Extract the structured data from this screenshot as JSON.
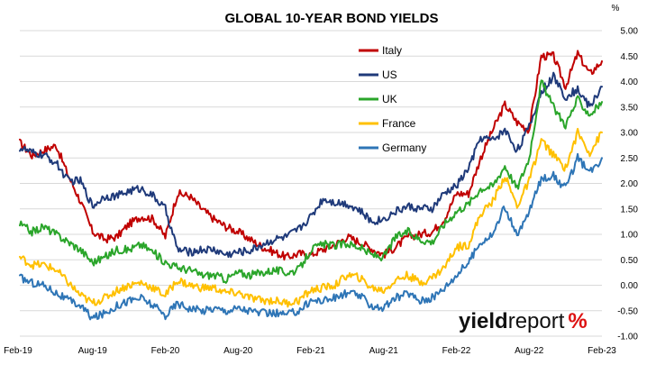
{
  "chart_data": {
    "type": "line",
    "title": "GLOBAL 10-YEAR BOND YIELDS",
    "unit_label": "%",
    "xlabel": "",
    "ylabel": "",
    "ylim": [
      -1.0,
      5.0
    ],
    "y_ticks": [
      "5.00",
      "4.50",
      "4.00",
      "3.50",
      "3.00",
      "2.50",
      "2.00",
      "1.50",
      "1.00",
      "0.50",
      "0.00",
      "-0.50",
      "-1.00"
    ],
    "x_ticks": [
      "Feb-19",
      "Aug-19",
      "Feb-20",
      "Aug-20",
      "Feb-21",
      "Aug-21",
      "Feb-22",
      "Aug-22",
      "Feb-23"
    ],
    "grid": "horizontal",
    "legend_position": "top-center",
    "x": [
      "2019-02",
      "2019-03",
      "2019-04",
      "2019-05",
      "2019-06",
      "2019-07",
      "2019-08",
      "2019-09",
      "2019-10",
      "2019-11",
      "2019-12",
      "2020-01",
      "2020-02",
      "2020-03",
      "2020-04",
      "2020-05",
      "2020-06",
      "2020-07",
      "2020-08",
      "2020-09",
      "2020-10",
      "2020-11",
      "2020-12",
      "2021-01",
      "2021-02",
      "2021-03",
      "2021-04",
      "2021-05",
      "2021-06",
      "2021-07",
      "2021-08",
      "2021-09",
      "2021-10",
      "2021-11",
      "2021-12",
      "2022-01",
      "2022-02",
      "2022-03",
      "2022-04",
      "2022-05",
      "2022-06",
      "2022-07",
      "2022-08",
      "2022-09",
      "2022-10",
      "2022-11",
      "2022-12",
      "2023-01",
      "2023-02"
    ],
    "series": [
      {
        "name": "Italy",
        "color": "#c00000",
        "values": [
          2.8,
          2.55,
          2.65,
          2.75,
          2.15,
          1.65,
          1.05,
          0.9,
          0.95,
          1.2,
          1.35,
          1.3,
          0.95,
          1.8,
          1.75,
          1.5,
          1.3,
          1.15,
          1.05,
          0.9,
          0.75,
          0.65,
          0.55,
          0.62,
          0.6,
          0.7,
          0.8,
          0.95,
          0.85,
          0.72,
          0.6,
          0.75,
          0.95,
          1.0,
          1.05,
          1.3,
          1.8,
          1.8,
          2.5,
          3.05,
          3.55,
          3.2,
          3.05,
          4.5,
          4.5,
          3.9,
          4.55,
          4.15,
          4.4
        ]
      },
      {
        "name": "US",
        "color": "#1f3a7a",
        "values": [
          2.7,
          2.6,
          2.55,
          2.4,
          2.05,
          2.05,
          1.55,
          1.75,
          1.75,
          1.85,
          1.9,
          1.75,
          1.5,
          0.7,
          0.65,
          0.7,
          0.7,
          0.6,
          0.65,
          0.68,
          0.8,
          0.9,
          0.95,
          1.1,
          1.35,
          1.7,
          1.63,
          1.6,
          1.47,
          1.25,
          1.3,
          1.45,
          1.55,
          1.5,
          1.5,
          1.8,
          1.95,
          2.3,
          2.9,
          2.85,
          3.05,
          2.65,
          3.1,
          3.8,
          4.1,
          3.7,
          3.85,
          3.5,
          3.9
        ]
      },
      {
        "name": "UK",
        "color": "#2aa52a",
        "values": [
          1.2,
          1.05,
          1.15,
          1.0,
          0.85,
          0.7,
          0.45,
          0.55,
          0.7,
          0.7,
          0.8,
          0.65,
          0.45,
          0.35,
          0.3,
          0.2,
          0.2,
          0.12,
          0.25,
          0.2,
          0.25,
          0.3,
          0.25,
          0.3,
          0.7,
          0.8,
          0.78,
          0.82,
          0.75,
          0.6,
          0.55,
          0.95,
          1.05,
          0.9,
          0.85,
          1.2,
          1.45,
          1.6,
          1.9,
          1.95,
          2.35,
          1.9,
          2.5,
          4.0,
          3.5,
          3.15,
          3.65,
          3.35,
          3.6
        ]
      },
      {
        "name": "France",
        "color": "#ffc000",
        "values": [
          0.55,
          0.4,
          0.4,
          0.3,
          0.05,
          -0.2,
          -0.35,
          -0.25,
          -0.1,
          0.0,
          0.05,
          -0.05,
          -0.2,
          0.1,
          0.0,
          -0.05,
          -0.05,
          -0.15,
          -0.15,
          -0.25,
          -0.3,
          -0.3,
          -0.35,
          -0.3,
          -0.1,
          -0.05,
          0.0,
          0.2,
          0.15,
          -0.05,
          -0.1,
          0.1,
          0.2,
          0.05,
          0.15,
          0.35,
          0.75,
          0.8,
          1.4,
          1.65,
          2.15,
          1.55,
          2.05,
          2.85,
          2.55,
          2.3,
          3.0,
          2.6,
          3.0
        ]
      },
      {
        "name": "Germany",
        "color": "#2e75b6",
        "values": [
          0.15,
          0.05,
          0.0,
          -0.15,
          -0.3,
          -0.4,
          -0.65,
          -0.55,
          -0.4,
          -0.3,
          -0.25,
          -0.4,
          -0.6,
          -0.35,
          -0.45,
          -0.5,
          -0.45,
          -0.5,
          -0.45,
          -0.5,
          -0.55,
          -0.55,
          -0.58,
          -0.5,
          -0.3,
          -0.3,
          -0.25,
          -0.15,
          -0.2,
          -0.4,
          -0.45,
          -0.25,
          -0.15,
          -0.3,
          -0.25,
          -0.05,
          0.2,
          0.45,
          0.85,
          1.0,
          1.55,
          0.95,
          1.45,
          2.1,
          2.15,
          1.9,
          2.5,
          2.2,
          2.5
        ]
      }
    ]
  },
  "logo": {
    "text_a": "yield",
    "text_b": "report",
    "text_c": "%"
  }
}
